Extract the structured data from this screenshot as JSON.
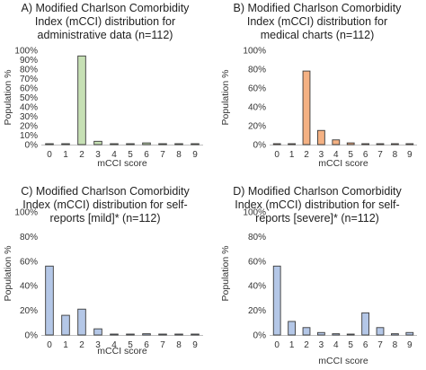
{
  "chart_data": [
    {
      "type": "bar",
      "title_lines": [
        "A) Modified Charlson Comorbidity",
        "Index (mCCI) distribution for",
        "administrative data (n=112)"
      ],
      "ylabel": "Population %",
      "xlabel": "mCCI score",
      "categories": [
        "0",
        "1",
        "2",
        "3",
        "4",
        "5",
        "6",
        "7",
        "8",
        "9"
      ],
      "values": [
        0.3,
        0.3,
        94,
        3.5,
        0.3,
        0.3,
        1.8,
        0.3,
        0.3,
        0.3
      ],
      "ylim": [
        0,
        100
      ],
      "yticks": [
        "0%",
        "10%",
        "20%",
        "30%",
        "40%",
        "50%",
        "60%",
        "70%",
        "80%",
        "90%",
        "100%"
      ],
      "ytick_values": [
        0,
        10,
        20,
        30,
        40,
        50,
        60,
        70,
        80,
        90,
        100
      ],
      "color": "#c6e0b4"
    },
    {
      "type": "bar",
      "title_lines": [
        "B) Modified Charlson Comorbidity",
        "Index (mCCI) distribution for",
        "medical charts (n=112)"
      ],
      "ylabel": "Population %",
      "xlabel": "mCCI score",
      "categories": [
        "0",
        "1",
        "2",
        "3",
        "4",
        "5",
        "6",
        "7",
        "8",
        "9"
      ],
      "values": [
        0.3,
        0.3,
        78,
        15,
        5,
        1.8,
        0.5,
        0.3,
        0.3,
        0.3
      ],
      "ylim": [
        0,
        100
      ],
      "yticks": [
        "0%",
        "20%",
        "40%",
        "60%",
        "80%",
        "100%"
      ],
      "ytick_values": [
        0,
        20,
        40,
        60,
        80,
        100
      ],
      "color": "#f4b183"
    },
    {
      "type": "bar",
      "title_lines": [
        "C) Modified Charlson Comorbidity",
        "Index (mCCI) distribution for self-",
        "reports [mild]* (n=112)"
      ],
      "ylabel": "Population %",
      "xlabel": "mCCI score",
      "categories": [
        "0",
        "1",
        "2",
        "3",
        "4",
        "5",
        "6",
        "7",
        "8",
        "9"
      ],
      "values": [
        56,
        16,
        21,
        5,
        0.3,
        0.3,
        1,
        0.3,
        0.3,
        0.3
      ],
      "ylim": [
        0,
        100
      ],
      "yticks": [
        "0%",
        "20%",
        "40%",
        "60%",
        "80%",
        "100%"
      ],
      "ytick_values": [
        0,
        20,
        40,
        60,
        80,
        100
      ],
      "color": "#b4c7e7"
    },
    {
      "type": "bar",
      "title_lines": [
        "D) Modified Charlson Comorbidity",
        "Index (mCCI) distribution for self-",
        "reports [severe]* (n=112)"
      ],
      "ylabel": "Population %",
      "xlabel": "mCCI score",
      "categories": [
        "0",
        "1",
        "2",
        "3",
        "4",
        "5",
        "6",
        "7",
        "8",
        "9"
      ],
      "values": [
        56,
        11,
        6,
        2,
        1,
        0.5,
        18,
        6,
        1,
        2
      ],
      "ylim": [
        0,
        100
      ],
      "yticks": [
        "0%",
        "20%",
        "40%",
        "60%",
        "80%",
        "100%"
      ],
      "ytick_values": [
        0,
        20,
        40,
        60,
        80,
        100
      ],
      "color": "#b4c7e7"
    }
  ]
}
